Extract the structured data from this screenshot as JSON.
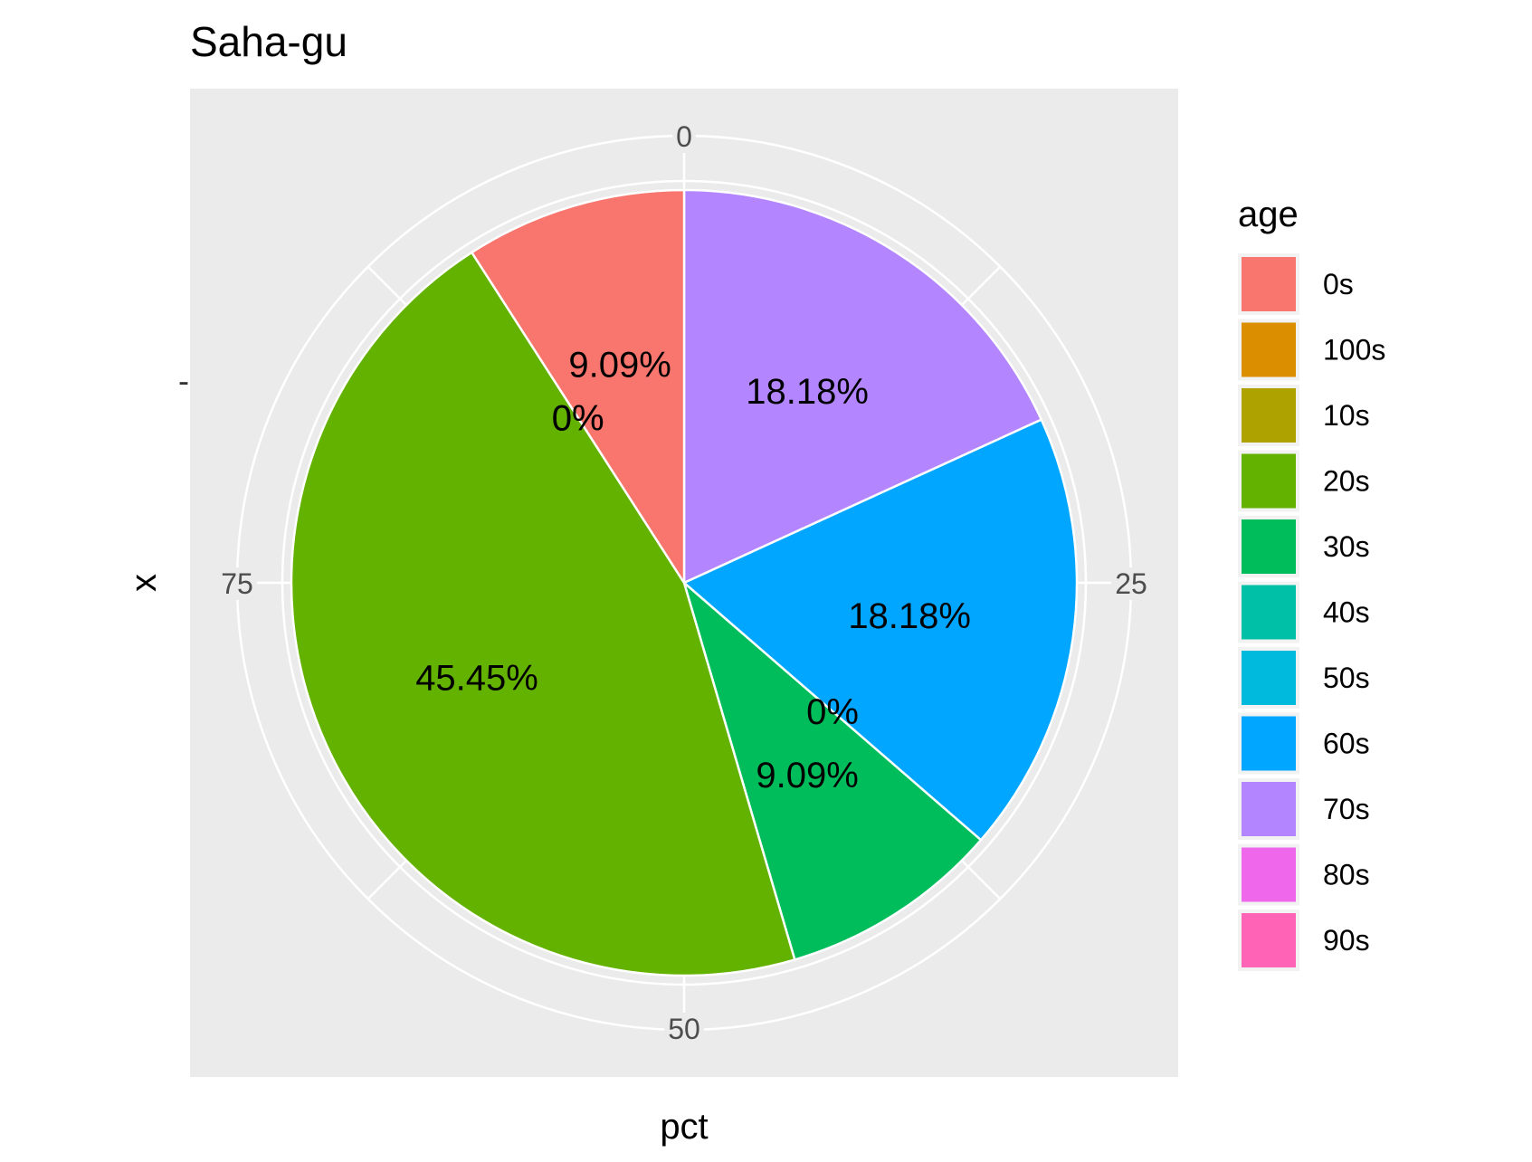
{
  "chart_data": {
    "type": "pie",
    "title": "Saha-gu",
    "xlabel": "pct",
    "ylabel": "x",
    "y_tick_label": "-",
    "angular_ticks": [
      "0",
      "25",
      "50",
      "75"
    ],
    "legend": {
      "title": "age",
      "position": "right"
    },
    "slices": [
      {
        "category": "0s",
        "value": 9.09,
        "label": "9.09%",
        "color": "#F8766D"
      },
      {
        "category": "100s",
        "value": 0,
        "label": "0%",
        "color": "#DB8E00"
      },
      {
        "category": "10s",
        "value": 0,
        "label": "0%",
        "color": "#AEA200"
      },
      {
        "category": "20s",
        "value": 45.45,
        "label": "45.45%",
        "color": "#64B200"
      },
      {
        "category": "30s",
        "value": 9.09,
        "label": "9.09%",
        "color": "#00BD5C"
      },
      {
        "category": "40s",
        "value": 0,
        "label": "",
        "color": "#00C1A7"
      },
      {
        "category": "50s",
        "value": 0,
        "label": "0%",
        "color": "#00BADE"
      },
      {
        "category": "60s",
        "value": 18.18,
        "label": "18.18%",
        "color": "#00A6FF"
      },
      {
        "category": "70s",
        "value": 18.18,
        "label": "18.18%",
        "color": "#B385FF"
      },
      {
        "category": "80s",
        "value": 0,
        "label": "",
        "color": "#EF67EB"
      },
      {
        "category": "90s",
        "value": 0,
        "label": "",
        "color": "#FF63B6"
      }
    ],
    "panel_background": "#EBEBEB",
    "grid": true,
    "grid_color": "#FFFFFF"
  }
}
